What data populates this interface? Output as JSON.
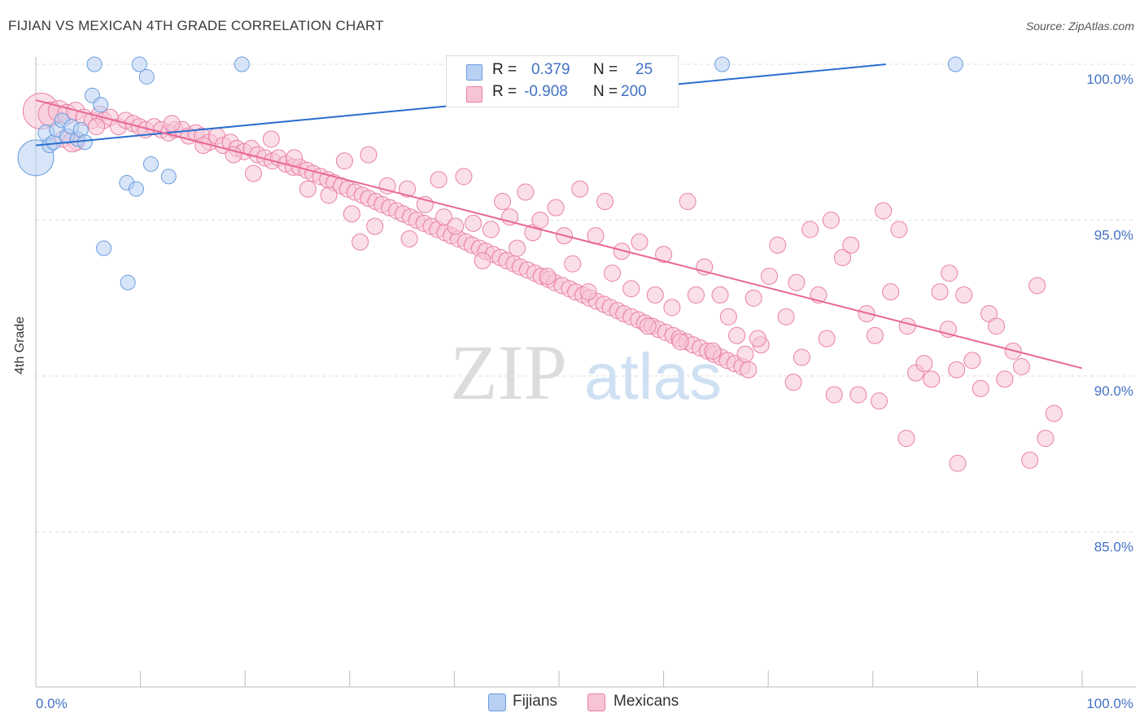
{
  "title": "FIJIAN VS MEXICAN 4TH GRADE CORRELATION CHART",
  "source": "Source: ZipAtlas.com",
  "watermark": {
    "zip": "ZIP",
    "atlas": "atlas"
  },
  "legend": {
    "fijians": {
      "r_label": "R =",
      "r_value": "0.379",
      "n_label": "N =",
      "n_value": "25"
    },
    "mexicans": {
      "r_label": "R =",
      "r_value": "-0.908",
      "n_label": "N =",
      "n_value": "200"
    }
  },
  "bottom_legend": {
    "fijians": "Fijians",
    "mexicans": "Mexicans"
  },
  "colors": {
    "fijians": "#6a9ce0",
    "fijians_fill": "#b8d0f2",
    "fijians_line": "#2a6ecf",
    "mexicans": "#e97fa4",
    "mexicans_fill": "#f7c4d6",
    "mexicans_line": "#e8679a",
    "accent": "#4472c4"
  },
  "chart_data": {
    "type": "scatter",
    "title": "FIJIAN VS MEXICAN 4TH GRADE CORRELATION CHART",
    "xlabel": "",
    "ylabel": "4th Grade",
    "xlim": [
      0,
      100
    ],
    "ylim": [
      80.5,
      100.5
    ],
    "x_tick_labels": [
      "0.0%",
      "100.0%"
    ],
    "y_ticks": [
      100,
      95,
      90,
      85
    ],
    "y_tick_labels": [
      "100.0%",
      "95.0%",
      "90.0%",
      "85.0%"
    ],
    "grid": true,
    "legend_position": "top-center",
    "series": [
      {
        "name": "Fijians",
        "points": [
          [
            0.0,
            97.0,
            22
          ],
          [
            1.0,
            97.8,
            10
          ],
          [
            1.3,
            97.4,
            9
          ],
          [
            1.7,
            97.5,
            9
          ],
          [
            2.0,
            97.9,
            9
          ],
          [
            2.5,
            98.2,
            9
          ],
          [
            3.0,
            97.7,
            9
          ],
          [
            3.4,
            98.0,
            9
          ],
          [
            4.0,
            97.6,
            9
          ],
          [
            4.3,
            97.9,
            9
          ],
          [
            4.7,
            97.5,
            9
          ],
          [
            5.4,
            99.0,
            9
          ],
          [
            5.6,
            100.0,
            9
          ],
          [
            6.2,
            98.7,
            9
          ],
          [
            6.5,
            94.1,
            9
          ],
          [
            8.7,
            96.2,
            9
          ],
          [
            8.8,
            93.0,
            9
          ],
          [
            9.6,
            96.0,
            9
          ],
          [
            9.9,
            100.0,
            9
          ],
          [
            10.6,
            99.6,
            9
          ],
          [
            11.0,
            96.8,
            9
          ],
          [
            12.7,
            96.4,
            9
          ],
          [
            19.7,
            100.0,
            9
          ],
          [
            65.6,
            100.0,
            9
          ],
          [
            87.9,
            100.0,
            9
          ]
        ],
        "trend": [
          [
            0,
            97.4
          ],
          [
            100,
            100.6
          ]
        ]
      },
      {
        "name": "Mexicans",
        "points": [
          [
            0.5,
            98.5,
            22
          ],
          [
            1.4,
            98.4,
            15
          ],
          [
            2.2,
            98.5,
            13
          ],
          [
            3.0,
            98.4,
            12
          ],
          [
            3.8,
            98.5,
            11
          ],
          [
            4.6,
            98.3,
            10
          ],
          [
            5.4,
            98.2,
            10
          ],
          [
            6.1,
            98.4,
            10
          ],
          [
            2.6,
            97.6,
            10
          ],
          [
            3.9,
            97.5,
            10
          ],
          [
            6.5,
            98.2,
            10
          ],
          [
            7.1,
            98.3,
            10
          ],
          [
            7.9,
            98.0,
            10
          ],
          [
            8.6,
            98.2,
            10
          ],
          [
            9.3,
            98.1,
            10
          ],
          [
            9.9,
            98.0,
            10
          ],
          [
            10.5,
            97.9,
            10
          ],
          [
            11.3,
            98.0,
            10
          ],
          [
            12.0,
            97.9,
            10
          ],
          [
            12.7,
            97.8,
            10
          ],
          [
            13.3,
            97.9,
            10
          ],
          [
            14.0,
            97.9,
            10
          ],
          [
            14.6,
            97.7,
            10
          ],
          [
            15.3,
            97.8,
            10
          ],
          [
            15.9,
            97.7,
            10
          ],
          [
            16.6,
            97.5,
            10
          ],
          [
            17.3,
            97.7,
            10
          ],
          [
            17.9,
            97.4,
            10
          ],
          [
            18.6,
            97.5,
            10
          ],
          [
            19.2,
            97.3,
            10
          ],
          [
            19.9,
            97.2,
            10
          ],
          [
            20.6,
            97.3,
            10
          ],
          [
            21.2,
            97.1,
            10
          ],
          [
            21.9,
            97.0,
            10
          ],
          [
            22.6,
            96.9,
            10
          ],
          [
            23.2,
            97.0,
            10
          ],
          [
            23.9,
            96.8,
            10
          ],
          [
            24.6,
            96.7,
            10
          ],
          [
            25.2,
            96.7,
            10
          ],
          [
            25.9,
            96.6,
            10
          ],
          [
            26.5,
            96.5,
            10
          ],
          [
            27.2,
            96.4,
            10
          ],
          [
            27.9,
            96.3,
            10
          ],
          [
            28.5,
            96.2,
            10
          ],
          [
            29.2,
            96.1,
            10
          ],
          [
            29.8,
            96.0,
            10
          ],
          [
            30.5,
            95.9,
            10
          ],
          [
            31.2,
            95.8,
            10
          ],
          [
            31.8,
            95.7,
            10
          ],
          [
            32.5,
            95.6,
            10
          ],
          [
            33.1,
            95.5,
            10
          ],
          [
            33.8,
            95.4,
            10
          ],
          [
            34.5,
            95.3,
            10
          ],
          [
            35.1,
            95.2,
            10
          ],
          [
            35.8,
            95.1,
            10
          ],
          [
            36.4,
            95.0,
            10
          ],
          [
            37.1,
            94.9,
            10
          ],
          [
            37.8,
            94.8,
            10
          ],
          [
            38.4,
            94.7,
            10
          ],
          [
            39.1,
            94.6,
            10
          ],
          [
            39.7,
            94.5,
            10
          ],
          [
            40.4,
            94.4,
            10
          ],
          [
            41.1,
            94.3,
            10
          ],
          [
            41.7,
            94.2,
            10
          ],
          [
            42.4,
            94.1,
            10
          ],
          [
            43.0,
            94.0,
            10
          ],
          [
            43.7,
            93.9,
            10
          ],
          [
            44.4,
            93.8,
            10
          ],
          [
            45.0,
            93.7,
            10
          ],
          [
            45.7,
            93.6,
            10
          ],
          [
            46.3,
            93.5,
            10
          ],
          [
            47.0,
            93.4,
            10
          ],
          [
            47.7,
            93.3,
            10
          ],
          [
            48.3,
            93.2,
            10
          ],
          [
            49.0,
            93.1,
            10
          ],
          [
            49.6,
            93.0,
            10
          ],
          [
            50.3,
            92.9,
            10
          ],
          [
            51.0,
            92.8,
            10
          ],
          [
            51.6,
            92.7,
            10
          ],
          [
            52.3,
            92.6,
            10
          ],
          [
            52.9,
            92.5,
            10
          ],
          [
            53.6,
            92.4,
            10
          ],
          [
            54.3,
            92.3,
            10
          ],
          [
            54.9,
            92.2,
            10
          ],
          [
            55.6,
            92.1,
            10
          ],
          [
            56.2,
            92.0,
            10
          ],
          [
            56.9,
            91.9,
            10
          ],
          [
            57.6,
            91.8,
            10
          ],
          [
            58.2,
            91.7,
            10
          ],
          [
            58.9,
            91.6,
            10
          ],
          [
            59.5,
            91.5,
            10
          ],
          [
            60.2,
            91.4,
            10
          ],
          [
            60.9,
            91.3,
            10
          ],
          [
            61.5,
            91.2,
            10
          ],
          [
            62.2,
            91.1,
            10
          ],
          [
            62.8,
            91.0,
            10
          ],
          [
            63.5,
            90.9,
            10
          ],
          [
            64.2,
            90.8,
            10
          ],
          [
            64.8,
            90.7,
            10
          ],
          [
            65.5,
            90.6,
            10
          ],
          [
            66.1,
            90.5,
            10
          ],
          [
            66.8,
            90.4,
            10
          ],
          [
            67.5,
            90.3,
            10
          ],
          [
            68.1,
            90.2,
            10
          ],
          [
            3.5,
            97.5,
            12
          ],
          [
            5.8,
            98.0,
            10
          ],
          [
            13.0,
            98.1,
            10
          ],
          [
            16.0,
            97.4,
            10
          ],
          [
            18.9,
            97.1,
            10
          ],
          [
            20.8,
            96.5,
            10
          ],
          [
            22.5,
            97.6,
            10
          ],
          [
            24.7,
            97.0,
            10
          ],
          [
            26.0,
            96.0,
            10
          ],
          [
            28.0,
            95.8,
            10
          ],
          [
            29.5,
            96.9,
            10
          ],
          [
            30.2,
            95.2,
            10
          ],
          [
            31.0,
            94.3,
            10
          ],
          [
            31.8,
            97.1,
            10
          ],
          [
            32.4,
            94.8,
            10
          ],
          [
            33.6,
            96.1,
            10
          ],
          [
            35.5,
            96.0,
            10
          ],
          [
            35.7,
            94.4,
            10
          ],
          [
            37.2,
            95.5,
            10
          ],
          [
            38.5,
            96.3,
            10
          ],
          [
            39.0,
            95.1,
            10
          ],
          [
            40.1,
            94.8,
            10
          ],
          [
            40.9,
            96.4,
            10
          ],
          [
            41.8,
            94.9,
            10
          ],
          [
            42.7,
            93.7,
            10
          ],
          [
            43.5,
            94.7,
            10
          ],
          [
            44.6,
            95.6,
            10
          ],
          [
            45.3,
            95.1,
            10
          ],
          [
            46.0,
            94.1,
            10
          ],
          [
            46.8,
            95.9,
            10
          ],
          [
            47.5,
            94.6,
            10
          ],
          [
            48.2,
            95.0,
            10
          ],
          [
            48.9,
            93.2,
            10
          ],
          [
            49.7,
            95.4,
            10
          ],
          [
            50.5,
            94.5,
            10
          ],
          [
            51.3,
            93.6,
            10
          ],
          [
            52.0,
            96.0,
            10
          ],
          [
            52.8,
            92.7,
            10
          ],
          [
            53.5,
            94.5,
            10
          ],
          [
            54.4,
            95.6,
            10
          ],
          [
            55.1,
            93.3,
            10
          ],
          [
            56.0,
            94.0,
            10
          ],
          [
            56.9,
            92.8,
            10
          ],
          [
            57.7,
            94.3,
            10
          ],
          [
            58.5,
            91.6,
            10
          ],
          [
            59.2,
            92.6,
            10
          ],
          [
            60.0,
            93.9,
            10
          ],
          [
            60.8,
            92.2,
            10
          ],
          [
            61.6,
            91.1,
            10
          ],
          [
            62.3,
            95.6,
            10
          ],
          [
            63.1,
            92.6,
            10
          ],
          [
            63.9,
            93.5,
            10
          ],
          [
            64.7,
            90.8,
            10
          ],
          [
            65.4,
            92.6,
            10
          ],
          [
            66.2,
            91.9,
            10
          ],
          [
            67.0,
            91.3,
            10
          ],
          [
            67.8,
            90.7,
            10
          ],
          [
            68.6,
            92.5,
            10
          ],
          [
            69.3,
            91.0,
            10
          ],
          [
            70.1,
            93.2,
            10
          ],
          [
            70.9,
            94.2,
            10
          ],
          [
            71.7,
            91.9,
            10
          ],
          [
            72.4,
            89.8,
            10
          ],
          [
            73.2,
            90.6,
            10
          ],
          [
            74.0,
            94.7,
            10
          ],
          [
            74.8,
            92.6,
            10
          ],
          [
            75.6,
            91.2,
            10
          ],
          [
            76.3,
            89.4,
            10
          ],
          [
            77.1,
            93.8,
            10
          ],
          [
            77.9,
            94.2,
            10
          ],
          [
            78.6,
            89.4,
            10
          ],
          [
            79.4,
            92.0,
            10
          ],
          [
            80.2,
            91.3,
            10
          ],
          [
            81.0,
            95.3,
            10
          ],
          [
            81.7,
            92.7,
            10
          ],
          [
            82.5,
            94.7,
            10
          ],
          [
            83.3,
            91.6,
            10
          ],
          [
            84.1,
            90.1,
            10
          ],
          [
            84.9,
            90.4,
            10
          ],
          [
            85.6,
            89.9,
            10
          ],
          [
            86.4,
            92.7,
            10
          ],
          [
            87.2,
            91.5,
            10
          ],
          [
            88.0,
            90.2,
            10
          ],
          [
            88.7,
            92.6,
            10
          ],
          [
            89.5,
            90.5,
            10
          ],
          [
            90.3,
            89.6,
            10
          ],
          [
            91.1,
            92.0,
            10
          ],
          [
            91.8,
            91.6,
            10
          ],
          [
            92.6,
            89.9,
            10
          ],
          [
            93.4,
            90.8,
            10
          ],
          [
            94.2,
            90.3,
            10
          ],
          [
            95.0,
            87.3,
            10
          ],
          [
            95.7,
            92.9,
            10
          ],
          [
            96.5,
            88.0,
            10
          ],
          [
            97.3,
            88.8,
            10
          ],
          [
            87.3,
            93.3,
            10
          ],
          [
            80.6,
            89.2,
            10
          ],
          [
            88.1,
            87.2,
            10
          ],
          [
            83.2,
            88.0,
            10
          ],
          [
            76.0,
            95.0,
            10
          ],
          [
            72.7,
            93.0,
            10
          ],
          [
            69.0,
            91.2,
            10
          ]
        ],
        "trend": [
          [
            0,
            98.85
          ],
          [
            100,
            90.25
          ]
        ]
      }
    ]
  }
}
